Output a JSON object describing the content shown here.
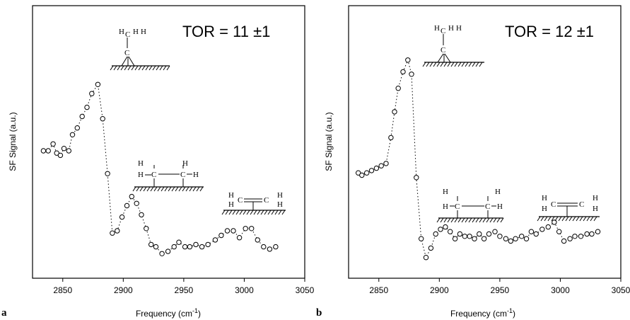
{
  "chart_data": [
    {
      "type": "scatter",
      "panel_label": "a",
      "annotation": "TOR = 11 ±1",
      "xlabel": "Frequency (cm",
      "xlabel_sup": "-1",
      "xlabel_end": ")",
      "ylabel": "SF Signal (a.u.)",
      "xlim": [
        2825,
        3050
      ],
      "ylim": [
        0,
        1
      ],
      "xticks": [
        "2850",
        "2900",
        "2950",
        "3000",
        "3050"
      ],
      "series": [
        {
          "x": [
            2834,
            2838,
            2842,
            2845,
            2848,
            2851,
            2855,
            2858,
            2862,
            2866,
            2870,
            2874,
            2879,
            2883,
            2887,
            2891,
            2895,
            2899,
            2903,
            2907,
            2911,
            2915,
            2919,
            2923,
            2927,
            2932,
            2937,
            2942,
            2946,
            2951,
            2955,
            2960,
            2965,
            2970,
            2976,
            2981,
            2986,
            2991,
            2996,
            3001,
            3006,
            3011,
            3016,
            3021,
            3026
          ],
          "y": [
            0.48,
            0.48,
            0.51,
            0.47,
            0.46,
            0.49,
            0.48,
            0.55,
            0.58,
            0.63,
            0.67,
            0.73,
            0.77,
            0.62,
            0.38,
            0.12,
            0.13,
            0.19,
            0.24,
            0.28,
            0.25,
            0.2,
            0.14,
            0.07,
            0.06,
            0.03,
            0.04,
            0.06,
            0.08,
            0.06,
            0.06,
            0.07,
            0.06,
            0.07,
            0.09,
            0.11,
            0.13,
            0.13,
            0.1,
            0.14,
            0.14,
            0.09,
            0.06,
            0.05,
            0.06
          ]
        }
      ]
    },
    {
      "type": "scatter",
      "panel_label": "b",
      "annotation": "TOR = 12 ±1",
      "xlabel": "Frequency (cm",
      "xlabel_sup": "-1",
      "xlabel_end": ")",
      "ylabel": "SF Signal (a.u.)",
      "xlim": [
        2825,
        3050
      ],
      "ylim": [
        0,
        1
      ],
      "xticks": [
        "2850",
        "2900",
        "2950",
        "3000",
        "3050"
      ],
      "series": [
        {
          "x": [
            2833,
            2836,
            2840,
            2844,
            2848,
            2852,
            2856,
            2860,
            2863,
            2866,
            2870,
            2874,
            2877,
            2881,
            2885,
            2889,
            2893,
            2897,
            2901,
            2905,
            2909,
            2913,
            2917,
            2921,
            2925,
            2929,
            2933,
            2937,
            2941,
            2946,
            2950,
            2955,
            2959,
            2963,
            2968,
            2972,
            2976,
            2980,
            2985,
            2990,
            2995,
            2999,
            3003,
            3008,
            3012,
            3017,
            3022,
            3026,
            3031
          ],
          "y": [
            0.4,
            0.39,
            0.4,
            0.41,
            0.42,
            0.43,
            0.44,
            0.55,
            0.66,
            0.76,
            0.83,
            0.88,
            0.82,
            0.38,
            0.12,
            0.04,
            0.08,
            0.14,
            0.16,
            0.17,
            0.15,
            0.12,
            0.14,
            0.13,
            0.13,
            0.12,
            0.14,
            0.12,
            0.14,
            0.15,
            0.13,
            0.12,
            0.11,
            0.12,
            0.13,
            0.12,
            0.15,
            0.14,
            0.16,
            0.17,
            0.19,
            0.15,
            0.11,
            0.12,
            0.13,
            0.13,
            0.14,
            0.14,
            0.15
          ]
        }
      ]
    }
  ],
  "molecule_labels": {
    "h": "H",
    "c": "C"
  }
}
